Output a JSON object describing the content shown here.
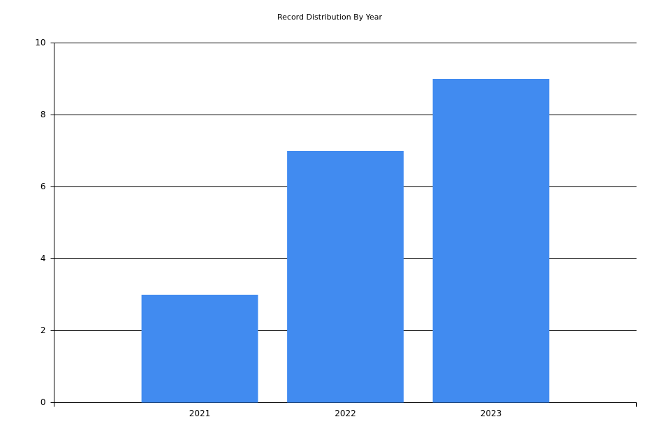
{
  "chart_data": {
    "type": "bar",
    "title": "Record Distribution By Year",
    "categories": [
      "2021",
      "2022",
      "2023"
    ],
    "values": [
      3,
      7,
      9
    ],
    "color": "#418bf0",
    "ylim": [
      0,
      10
    ],
    "yticks": [
      0,
      2,
      4,
      6,
      8,
      10
    ],
    "grid": true
  }
}
